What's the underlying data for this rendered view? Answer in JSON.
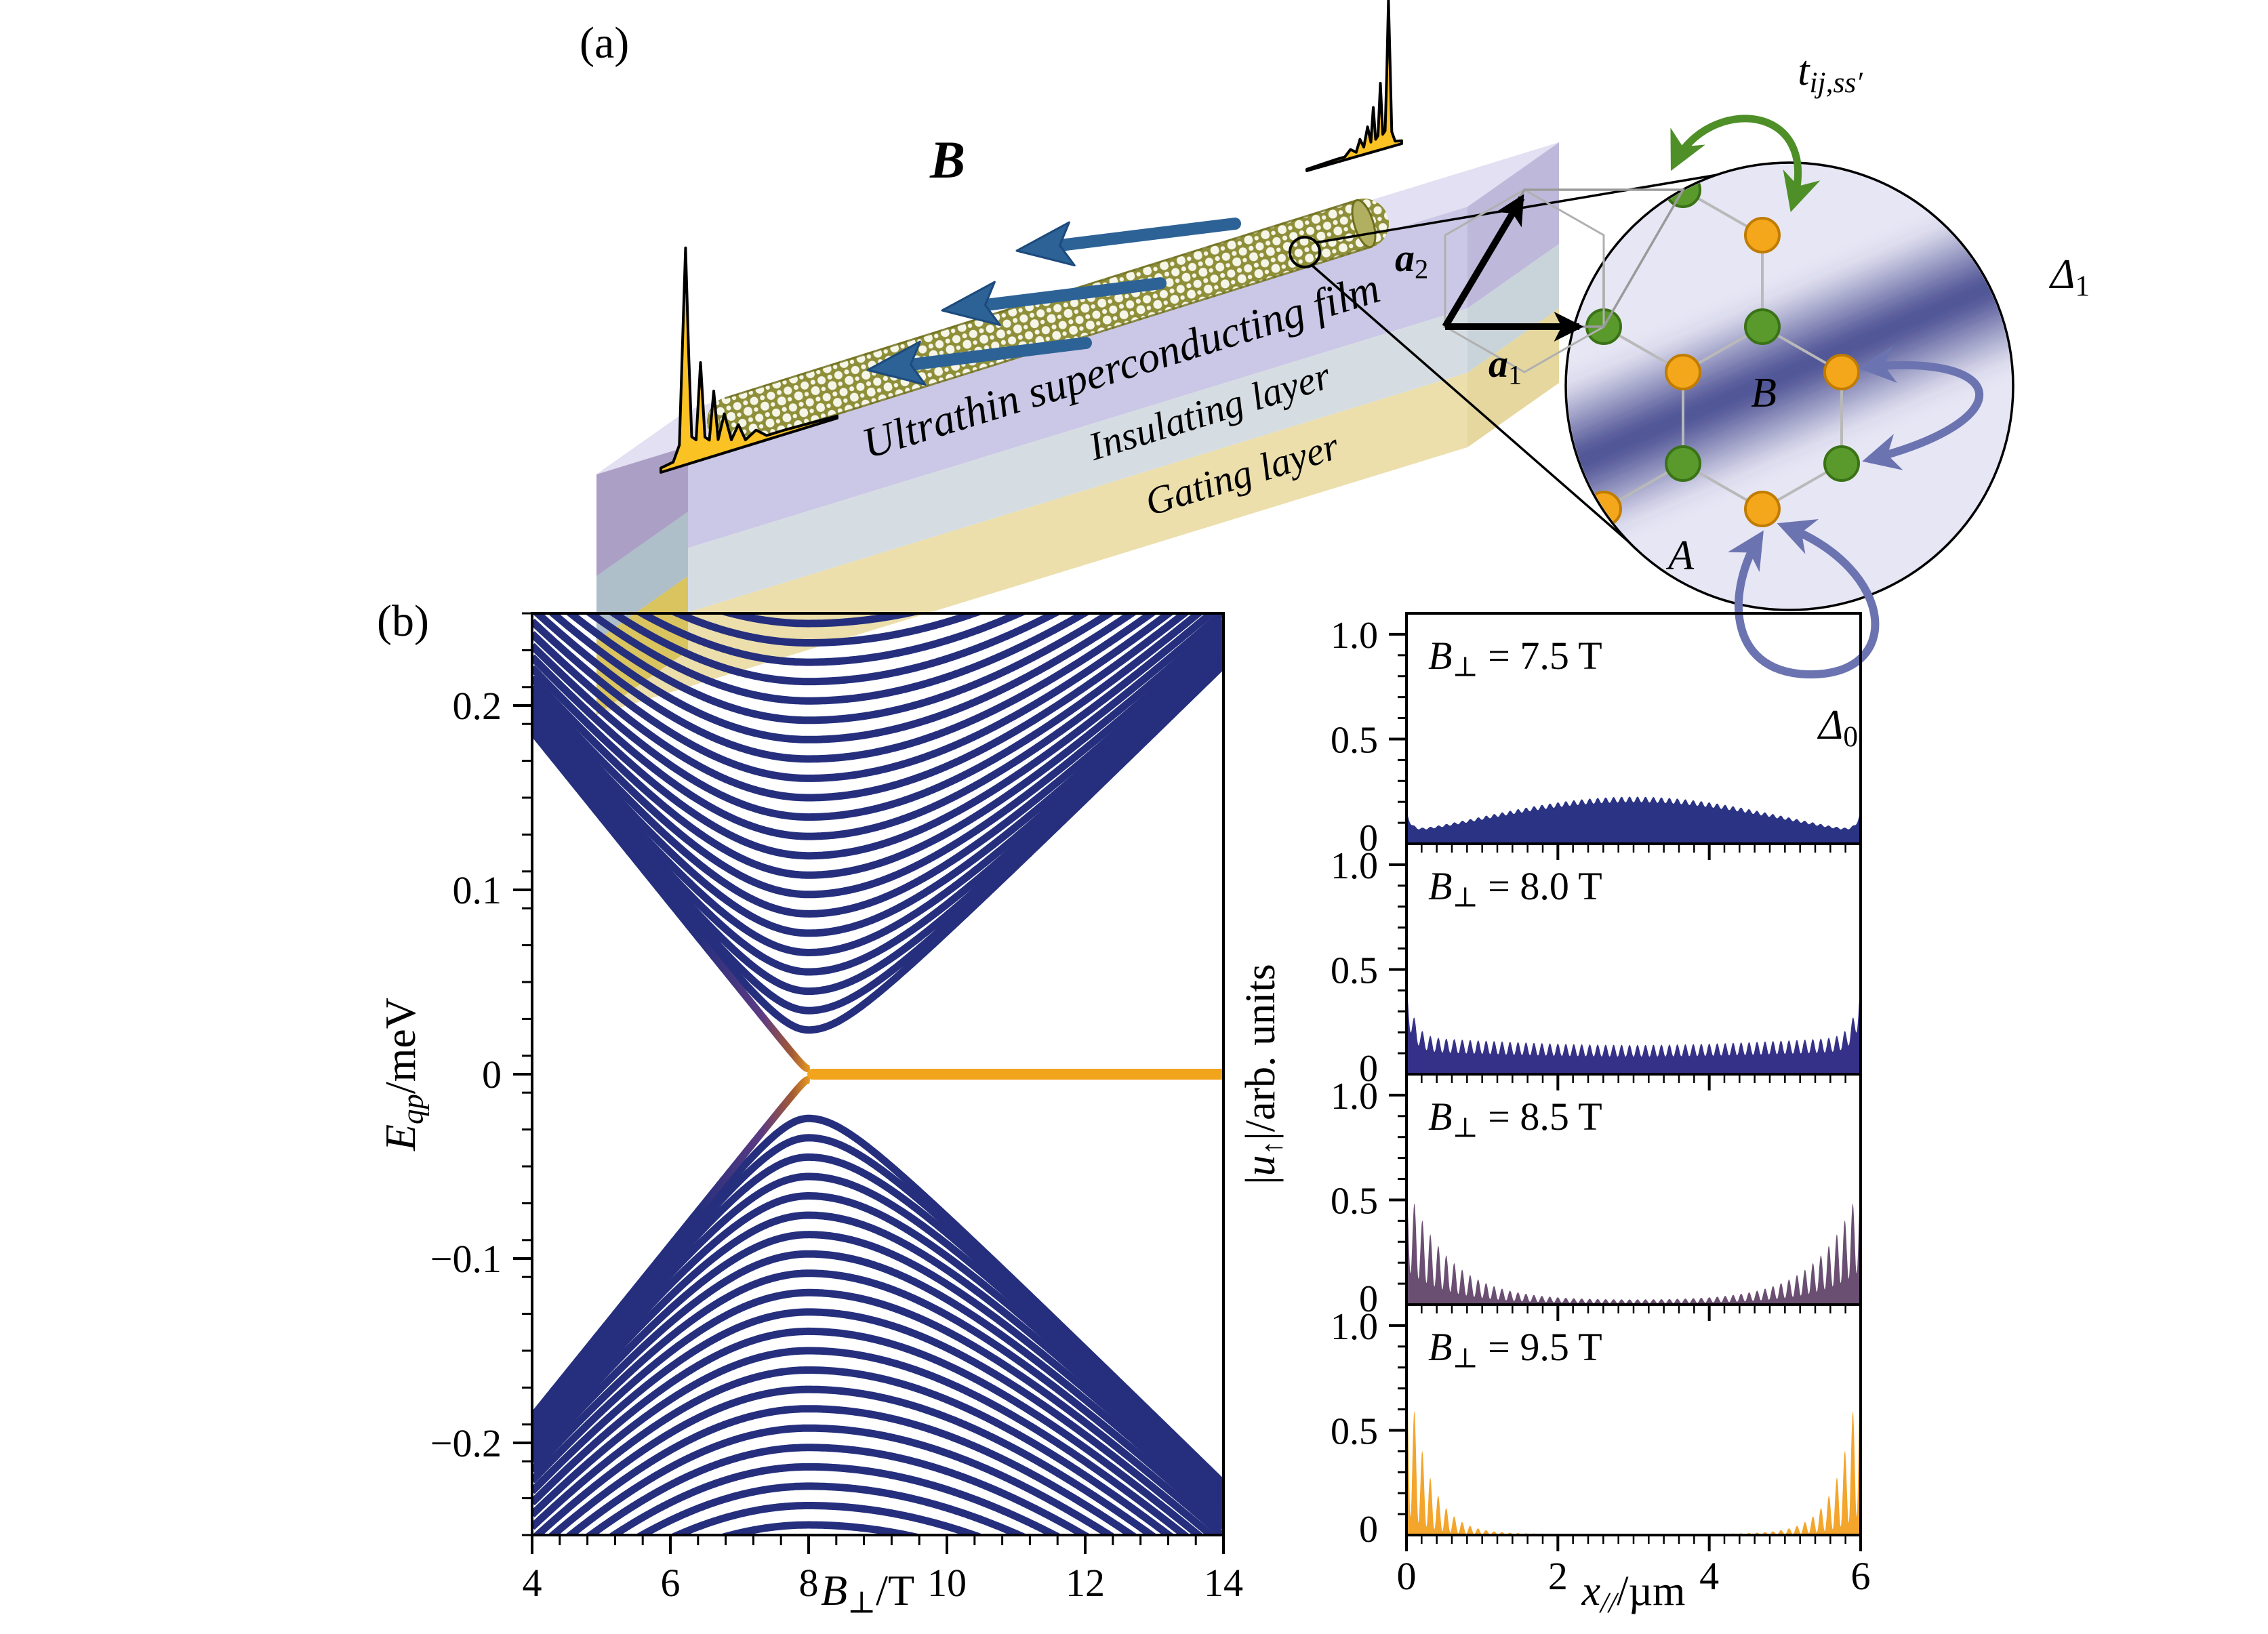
{
  "labels": {
    "panel_a": "(a)",
    "panel_b": "(b)",
    "field": "B",
    "layers": [
      "Ultrathin superconducting film",
      "Insulating layer",
      "Gating layer"
    ],
    "site_A": "A",
    "site_B": "B"
  },
  "schematic": {
    "field_label_parts": [
      {
        "t": "B",
        "i": 1,
        "b": 1
      }
    ],
    "inset": {
      "hopping_parts": [
        {
          "t": "t",
          "i": 1
        },
        {
          "t": "ij,ss′",
          "i": 1,
          "sub": 1
        }
      ],
      "a1_parts": [
        {
          "t": "a",
          "i": 1,
          "b": 1
        },
        {
          "t": "1",
          "sub": 1
        }
      ],
      "a2_parts": [
        {
          "t": "a",
          "i": 1,
          "b": 1
        },
        {
          "t": "2",
          "sub": 1
        }
      ],
      "delta1_parts": [
        {
          "t": "Δ",
          "i": 1
        },
        {
          "t": "1",
          "sub": 1
        }
      ],
      "delta0_parts": [
        {
          "t": "Δ",
          "i": 1
        },
        {
          "t": "0",
          "sub": 1
        }
      ]
    }
  },
  "colors": {
    "slab_top": "#e2e0f2",
    "slab_front": [
      "#cbc7e6",
      "#d6dde2",
      "#ecdfac"
    ],
    "slab_left": [
      "#ac9fc6",
      "#aebfc9",
      "#d9c45f"
    ],
    "slab_right": [
      "#beb8da",
      "#c9d4da",
      "#e6d79e"
    ],
    "tube": "#8f8f3a",
    "tube_edge": "#6e6e1e",
    "arrow_blue": "#2d6296",
    "arrow_blue_dark": "#1c4a7c",
    "pulse_gold": "#fbc224",
    "inset_fill": "#e7e6f4",
    "inset_band": "#383d87",
    "bond_gray": "#b9b9b9",
    "cell_gray": "#9a9a9a",
    "site_green": "#5a9a2d",
    "site_green_dark": "#3a7216",
    "site_orange": "#f4a71b",
    "site_orange_dark": "#c07c00",
    "hop_green": "#4e8f28",
    "pair_blue": "#6b74b0",
    "label_A_green": "#4e8f28",
    "label_B_orange": "#e8960f"
  },
  "chart_data": [
    {
      "id": "spectrum",
      "type": "line",
      "title": "",
      "xlabel": "B⊥/T",
      "ylabel": "Eqp/meV",
      "xlabel_parts": [
        {
          "t": "B",
          "i": 1
        },
        {
          "t": "⊥",
          "sub": 1
        },
        {
          "t": "/T"
        }
      ],
      "ylabel_parts": [
        {
          "t": "E",
          "i": 1
        },
        {
          "t": "qp",
          "i": 1,
          "sub": 1
        },
        {
          "t": "/meV"
        }
      ],
      "xlim": [
        4,
        14
      ],
      "ylim": [
        -0.25,
        0.25
      ],
      "xticks": [
        {
          "v": 4,
          "t": "4"
        },
        {
          "v": 6,
          "t": "6"
        },
        {
          "v": 8,
          "t": "8"
        },
        {
          "v": 10,
          "t": "10"
        },
        {
          "v": 12,
          "t": "12"
        },
        {
          "v": 14,
          "t": "14"
        }
      ],
      "yticks": [
        {
          "v": 0.2,
          "t": "0.2"
        },
        {
          "v": 0.1,
          "t": "0.1"
        },
        {
          "v": 0,
          "t": "0"
        },
        {
          "v": -0.1,
          "t": "−0.1"
        },
        {
          "v": -0.2,
          "t": "−0.2"
        }
      ],
      "xminor_step": 0.4,
      "yminor_step": 0.02,
      "grid": false,
      "legend": null,
      "gap_close_B": 8.0,
      "velocity_meV_per_T_left": 0.0465,
      "velocity_meV_per_T_right": 0.0368,
      "level_minima_meV": [
        0.024,
        0.0345,
        0.045,
        0.0555,
        0.066,
        0.0765,
        0.087,
        0.0975,
        0.108,
        0.1185,
        0.129,
        0.1395,
        0.15,
        0.1605,
        0.171,
        0.1815,
        0.192,
        0.2025,
        0.213,
        0.2235,
        0.234,
        0.2445,
        0.255,
        0.2655
      ],
      "bands_symmetric_about_zero": true,
      "zero_mode": {
        "B_start": 8.0,
        "B_end": 14.0,
        "E": 0.0
      },
      "series_colors": {
        "levels": "#252f7d",
        "zero_mode": "#f2a41d"
      }
    },
    {
      "id": "profiles",
      "type": "area",
      "xlabel": "x///µm",
      "ylabel": "|u↑|/arb. units",
      "xlabel_parts": [
        {
          "t": "x",
          "i": 1
        },
        {
          "t": "//",
          "i": 1,
          "sub": 1
        },
        {
          "t": "/µm"
        }
      ],
      "ylabel_parts": [
        {
          "t": "|"
        },
        {
          "t": "u",
          "i": 1
        },
        {
          "t": "↑",
          "sub": 1
        },
        {
          "t": "|/arb. units"
        }
      ],
      "xlim": [
        0,
        6
      ],
      "ylim": [
        0,
        1.1
      ],
      "xticks": [
        {
          "v": 0,
          "t": "0"
        },
        {
          "v": 2,
          "t": "2"
        },
        {
          "v": 4,
          "t": "4"
        },
        {
          "v": 6,
          "t": "6"
        }
      ],
      "yticks": [
        {
          "v": 1.0,
          "t": "1.0"
        },
        {
          "v": 0.5,
          "t": "0.5"
        },
        {
          "v": 0,
          "t": "0"
        }
      ],
      "xminor_step": 0.2,
      "yminor_step": 0.1,
      "panels": [
        {
          "label_parts": [
            {
              "t": "B",
              "i": 1
            },
            {
              "t": "⊥",
              "sub": 1
            },
            {
              "t": " = 7.5 T"
            }
          ],
          "B_T": 7.5,
          "color": "#2a3384",
          "bulk_amp": 0.065,
          "center_amp": 0.16,
          "edge_amp": 0.1,
          "edge_decay_um": 0.06,
          "osc_depth": 0.12
        },
        {
          "label_parts": [
            {
              "t": "B",
              "i": 1
            },
            {
              "t": "⊥",
              "sub": 1
            },
            {
              "t": " = 8.0 T"
            }
          ],
          "B_T": 8.0,
          "color": "#363188",
          "bulk_amp": 0.175,
          "center_amp": -0.035,
          "edge_amp": 0.27,
          "edge_decay_um": 0.1,
          "osc_depth": 0.4
        },
        {
          "label_parts": [
            {
              "t": "B",
              "i": 1
            },
            {
              "t": "⊥",
              "sub": 1
            },
            {
              "t": " = 8.5 T"
            }
          ],
          "B_T": 8.5,
          "color": "#6b4f72",
          "bulk_amp": 0.02,
          "center_amp": 0.0,
          "edge_amp": 0.56,
          "edge_decay_um": 0.55,
          "osc_depth": 0.72
        },
        {
          "label_parts": [
            {
              "t": "B",
              "i": 1
            },
            {
              "t": "⊥",
              "sub": 1
            },
            {
              "t": " = 9.5 T"
            }
          ],
          "B_T": 9.5,
          "color": "#f3a52c",
          "bulk_amp": 0.006,
          "center_amp": 0.0,
          "edge_amp": 0.86,
          "edge_decay_um": 0.27,
          "osc_depth": 0.88
        }
      ],
      "osc_freq_per_um": 9.5
    }
  ]
}
